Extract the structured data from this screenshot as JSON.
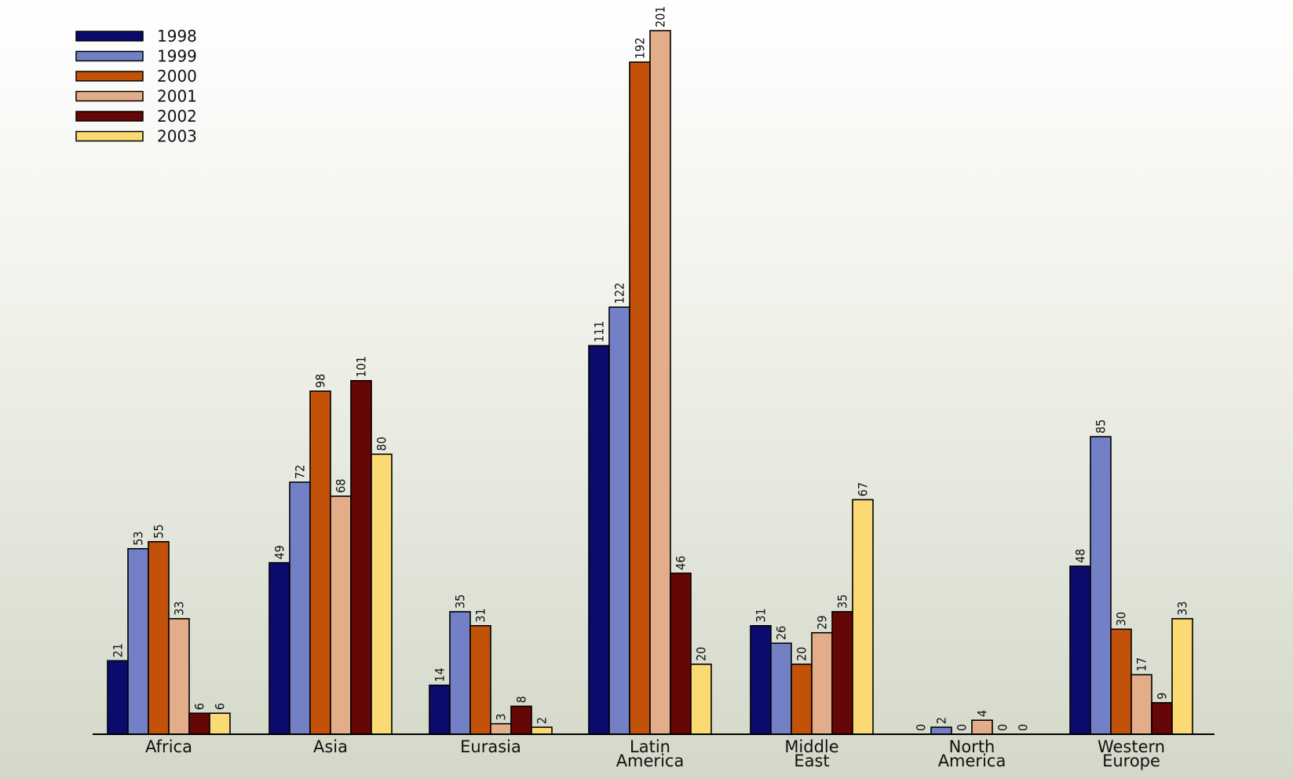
{
  "chart_data": {
    "type": "bar",
    "title": "",
    "xlabel": "",
    "ylabel": "",
    "ylim": [
      0,
      201
    ],
    "grid": false,
    "legend_position": "top-left",
    "categories": [
      [
        "Africa"
      ],
      [
        "Asia"
      ],
      [
        "Eurasia"
      ],
      [
        "Latin",
        "America"
      ],
      [
        "Middle",
        "East"
      ],
      [
        "North",
        "America"
      ],
      [
        "Western",
        "Europe"
      ]
    ],
    "series": [
      {
        "name": "1998",
        "color": "#0b0b6e",
        "values": [
          21,
          49,
          14,
          111,
          31,
          0,
          48
        ]
      },
      {
        "name": "1999",
        "color": "#7480c6",
        "values": [
          53,
          72,
          35,
          122,
          26,
          2,
          85
        ]
      },
      {
        "name": "2000",
        "color": "#c25209",
        "values": [
          55,
          98,
          31,
          192,
          20,
          0,
          30
        ]
      },
      {
        "name": "2001",
        "color": "#e3ad8a",
        "values": [
          33,
          68,
          3,
          201,
          29,
          4,
          17
        ]
      },
      {
        "name": "2002",
        "color": "#650707",
        "values": [
          6,
          101,
          8,
          46,
          35,
          0,
          9
        ]
      },
      {
        "name": "2003",
        "color": "#fbda74",
        "values": [
          6,
          80,
          2,
          20,
          67,
          0,
          33
        ]
      }
    ]
  }
}
